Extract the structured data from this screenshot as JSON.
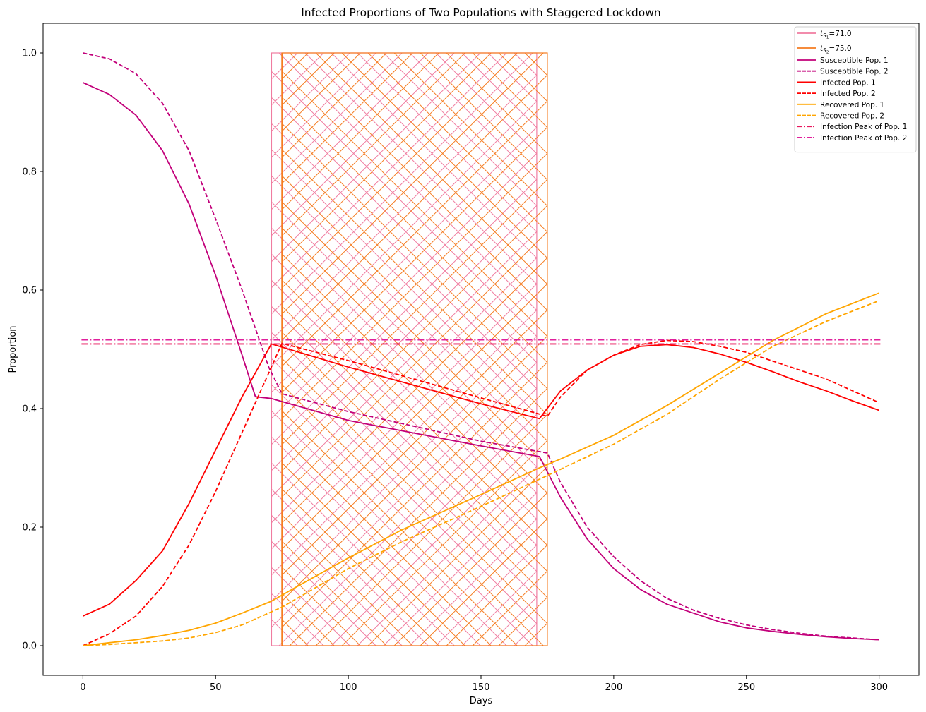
{
  "chart_data": {
    "type": "line",
    "title": "Infected Proportions of Two Populations with Staggered Lockdown",
    "xlabel": "Days",
    "ylabel": "Proportion",
    "xlim": [
      -15,
      315
    ],
    "ylim": [
      -0.05,
      1.05
    ],
    "xticks": [
      0,
      50,
      100,
      150,
      200,
      250,
      300
    ],
    "yticks": [
      0.0,
      0.2,
      0.4,
      0.6,
      0.8,
      1.0
    ],
    "xtick_labels": [
      "0",
      "50",
      "100",
      "150",
      "200",
      "250",
      "300"
    ],
    "ytick_labels": [
      "0.0",
      "0.2",
      "0.4",
      "0.6",
      "0.8",
      "1.0"
    ],
    "grid": false,
    "legend_position": "top-right",
    "lockdowns": [
      {
        "name": "t_S1=71.0",
        "label_sub": "S",
        "label_subsub": "1",
        "label_value": "=71.0",
        "start": 71,
        "end": 171,
        "color": "#f07ca0",
        "hatch": "cross"
      },
      {
        "name": "t_S2=75.0",
        "label_sub": "S",
        "label_subsub": "2",
        "label_value": "=75.0",
        "start": 75,
        "end": 175,
        "color": "#f57c20",
        "hatch": "cross"
      }
    ],
    "series": [
      {
        "name": "Susceptible Pop. 1",
        "color": "#c2007a",
        "dash": "solid",
        "x": [
          0,
          10,
          20,
          30,
          40,
          50,
          60,
          65,
          71,
          100,
          150,
          172,
          180,
          190,
          200,
          210,
          220,
          230,
          240,
          250,
          260,
          270,
          280,
          290,
          300
        ],
        "y": [
          0.95,
          0.93,
          0.895,
          0.835,
          0.745,
          0.625,
          0.49,
          0.42,
          0.417,
          0.38,
          0.337,
          0.319,
          0.25,
          0.18,
          0.13,
          0.095,
          0.07,
          0.055,
          0.04,
          0.03,
          0.024,
          0.019,
          0.015,
          0.012,
          0.01
        ]
      },
      {
        "name": "Susceptible Pop. 2",
        "color": "#c2007a",
        "dash": "dashed",
        "x": [
          0,
          10,
          20,
          30,
          40,
          50,
          60,
          65,
          70,
          75,
          100,
          150,
          175,
          180,
          190,
          200,
          210,
          220,
          230,
          240,
          250,
          260,
          270,
          280,
          290,
          300
        ],
        "y": [
          1.0,
          0.99,
          0.965,
          0.915,
          0.835,
          0.72,
          0.6,
          0.535,
          0.47,
          0.425,
          0.395,
          0.345,
          0.325,
          0.275,
          0.2,
          0.15,
          0.11,
          0.08,
          0.06,
          0.046,
          0.035,
          0.027,
          0.021,
          0.016,
          0.013,
          0.01
        ]
      },
      {
        "name": "Infected Pop. 1",
        "color": "#ff0000",
        "dash": "solid",
        "x": [
          0,
          10,
          20,
          30,
          40,
          50,
          60,
          71,
          100,
          150,
          172,
          180,
          190,
          200,
          210,
          220,
          230,
          240,
          250,
          260,
          270,
          280,
          290,
          300
        ],
        "y": [
          0.05,
          0.07,
          0.11,
          0.16,
          0.24,
          0.33,
          0.42,
          0.509,
          0.47,
          0.408,
          0.383,
          0.43,
          0.465,
          0.49,
          0.505,
          0.508,
          0.503,
          0.492,
          0.478,
          0.462,
          0.445,
          0.43,
          0.413,
          0.397
        ]
      },
      {
        "name": "Infected Pop. 2",
        "color": "#ff0000",
        "dash": "dashed",
        "x": [
          0,
          10,
          20,
          30,
          40,
          50,
          60,
          70,
          75,
          100,
          150,
          175,
          180,
          190,
          200,
          210,
          220,
          230,
          240,
          250,
          260,
          270,
          280,
          290,
          300
        ],
        "y": [
          0.0,
          0.02,
          0.05,
          0.1,
          0.17,
          0.26,
          0.36,
          0.46,
          0.51,
          0.481,
          0.418,
          0.387,
          0.42,
          0.465,
          0.49,
          0.508,
          0.515,
          0.513,
          0.505,
          0.495,
          0.48,
          0.465,
          0.45,
          0.43,
          0.41
        ]
      },
      {
        "name": "Recovered Pop. 1",
        "color": "#ffa500",
        "dash": "solid",
        "x": [
          0,
          10,
          20,
          30,
          40,
          50,
          60,
          71,
          80,
          100,
          120,
          150,
          172,
          180,
          200,
          220,
          240,
          260,
          280,
          300
        ],
        "y": [
          0.0,
          0.005,
          0.01,
          0.017,
          0.026,
          0.038,
          0.055,
          0.075,
          0.098,
          0.148,
          0.195,
          0.255,
          0.3,
          0.315,
          0.355,
          0.405,
          0.46,
          0.515,
          0.56,
          0.595
        ]
      },
      {
        "name": "Recovered Pop. 2",
        "color": "#ffa500",
        "dash": "dashed",
        "x": [
          0,
          10,
          20,
          30,
          40,
          50,
          60,
          75,
          100,
          120,
          150,
          175,
          200,
          220,
          240,
          260,
          280,
          300
        ],
        "y": [
          0.0,
          0.002,
          0.005,
          0.008,
          0.013,
          0.022,
          0.035,
          0.065,
          0.13,
          0.175,
          0.235,
          0.287,
          0.34,
          0.39,
          0.45,
          0.505,
          0.547,
          0.582
        ]
      },
      {
        "name": "Infection Peak of Pop. 1",
        "color": "#e8175d",
        "dash": "dashdot",
        "constant_y": 0.509
      },
      {
        "name": "Infection Peak of Pop. 2",
        "color": "#e0209c",
        "dash": "dashdot",
        "constant_y": 0.516
      }
    ]
  }
}
